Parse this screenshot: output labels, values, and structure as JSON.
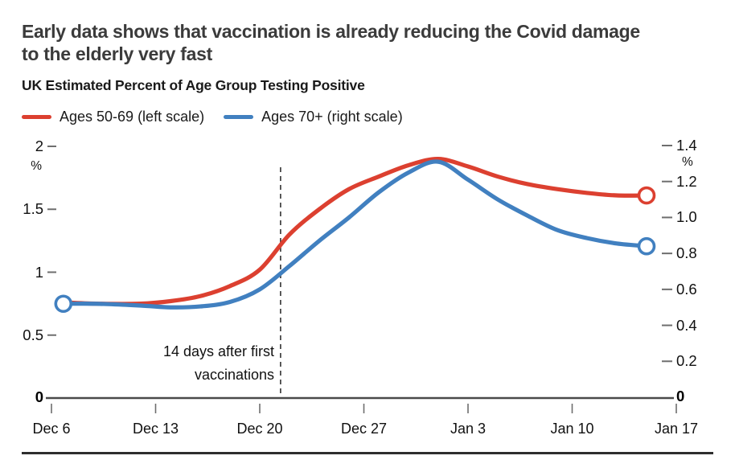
{
  "page": {
    "headline": "Early data shows that vaccination is already reducing the Covid damage\nto the elderly very fast",
    "subtitle": "UK Estimated Percent of Age Group Testing Positive"
  },
  "annotation": {
    "text": "14 days after first\nvaccinations"
  },
  "colors": {
    "red_line": "#dc4030",
    "blue_line": "#4180c0",
    "axis_line": "#4a4a4a",
    "tick": "#6e6e6e",
    "dashed_line": "#333333"
  },
  "chart_data": {
    "type": "line",
    "title": "UK Estimated Percent of Age Group Testing Positive",
    "headline": "Early data shows that vaccination is already reducing the Covid damage to the elderly very fast",
    "legend_position": "top",
    "grid": false,
    "x_axis": {
      "tick_labels": [
        "Dec 6",
        "Dec 13",
        "Dec 20",
        "Dec 27",
        "Jan 3",
        "Jan 10",
        "Jan 17"
      ],
      "tick_days": [
        0,
        7,
        14,
        21,
        28,
        35,
        42
      ]
    },
    "left_axis": {
      "unit": "%",
      "range": [
        0,
        2
      ],
      "tick_labels": [
        "2",
        "1.5",
        "1",
        "0.5"
      ],
      "tick_values": [
        2,
        1.5,
        1,
        0.5
      ],
      "zero_label": "0"
    },
    "right_axis": {
      "unit": "%",
      "range": [
        0,
        1.4
      ],
      "tick_labels": [
        "1.4",
        "1.2",
        "1.0",
        "0.8",
        "0.6",
        "0.4",
        "0.2"
      ],
      "tick_values": [
        1.4,
        1.2,
        1.0,
        0.8,
        0.6,
        0.4,
        0.2
      ],
      "zero_label": "0"
    },
    "annotation": {
      "text": "14 days after first\nvaccinations",
      "day": 15.4
    },
    "series": [
      {
        "name": "Ages 50-69 (left scale)",
        "axis": "left",
        "color": "#dc4030",
        "marker": "open-circle-at-ends",
        "days": [
          0.8,
          3,
          6,
          8,
          10,
          12,
          14,
          16,
          18,
          20,
          22,
          24,
          26,
          28,
          30,
          32,
          34,
          36,
          38,
          40
        ],
        "values": [
          0.76,
          0.75,
          0.75,
          0.77,
          0.81,
          0.89,
          1.02,
          1.3,
          1.5,
          1.66,
          1.76,
          1.85,
          1.9,
          1.84,
          1.76,
          1.7,
          1.66,
          1.63,
          1.61,
          1.61
        ]
      },
      {
        "name": "Ages 70+ (right scale)",
        "axis": "right",
        "color": "#4180c0",
        "marker": "open-circle-at-ends",
        "days": [
          0.8,
          3,
          6,
          8,
          10,
          12,
          14,
          16,
          18,
          20,
          22,
          24,
          26,
          28,
          30,
          32,
          34,
          36,
          38,
          40
        ],
        "values": [
          0.52,
          0.52,
          0.51,
          0.5,
          0.505,
          0.53,
          0.6,
          0.73,
          0.87,
          1.0,
          1.14,
          1.25,
          1.31,
          1.21,
          1.1,
          1.01,
          0.93,
          0.885,
          0.855,
          0.84
        ]
      }
    ]
  }
}
